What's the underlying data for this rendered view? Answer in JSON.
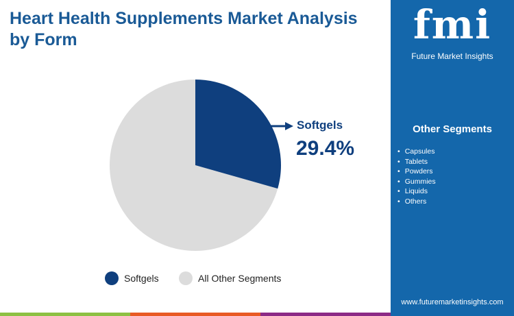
{
  "title": "Heart Health Supplements Market Analysis by Form",
  "brand": {
    "logo_text": "fmi",
    "name": "Future Market Insights",
    "url": "www.futuremarketinsights.com"
  },
  "sidebar": {
    "heading": "Other Segments",
    "items": [
      "Capsules",
      "Tablets",
      "Powders",
      "Gummies",
      "Liquids",
      "Others"
    ]
  },
  "chart_data": {
    "type": "pie",
    "slices": [
      {
        "label": "Softgels",
        "value": 29.4,
        "color": "#0f3f7e"
      },
      {
        "label": "All Other Segments",
        "value": 70.6,
        "color": "#dcdcdc"
      }
    ],
    "annotation": {
      "label": "Softgels",
      "value_text": "29.4%"
    },
    "legend_position": "bottom"
  },
  "colors": {
    "panel": "#1467ab",
    "bars": [
      "#8dc043",
      "#e85a24",
      "#8c2a86"
    ]
  }
}
